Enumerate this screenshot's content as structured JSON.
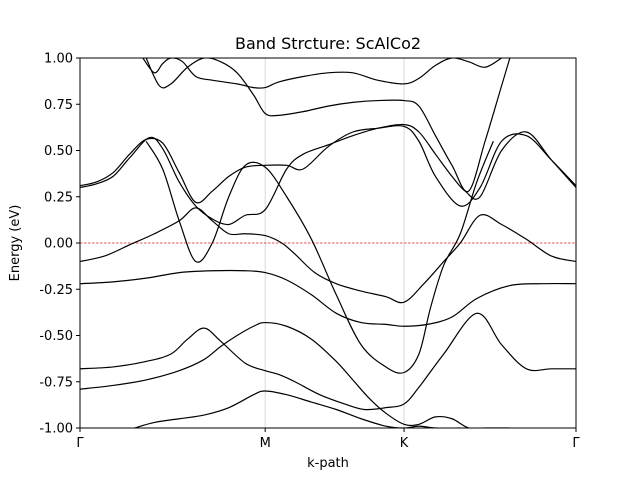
{
  "chart_data": {
    "type": "line",
    "title": "Band Strcture: ScAlCo2",
    "xlabel": "k-path",
    "ylabel": "Energy (eV)",
    "xlim": [
      0,
      3.0
    ],
    "ylim": [
      -1.0,
      1.0
    ],
    "high_symmetry_points": [
      {
        "label": "Γ",
        "x": 0.0
      },
      {
        "label": "M",
        "x": 1.12
      },
      {
        "label": "K",
        "x": 1.96
      },
      {
        "label": "Γ",
        "x": 3.0
      }
    ],
    "yticks": [
      "-1.00",
      "-0.75",
      "-0.50",
      "-0.25",
      "0.00",
      "0.25",
      "0.50",
      "0.75",
      "1.00"
    ],
    "fermi_level": 0.0,
    "grid": "vertical lines at high-symmetry points",
    "bands": [
      {
        "x": [
          0.33,
          0.45,
          0.6,
          0.75,
          0.9,
          1.05,
          1.12,
          1.25,
          1.4,
          1.55,
          1.7,
          1.85,
          1.96,
          2.05,
          2.15,
          2.3
        ],
        "y": [
          -1.0,
          -0.97,
          -0.95,
          -0.93,
          -0.89,
          -0.82,
          -0.8,
          -0.82,
          -0.86,
          -0.9,
          -0.95,
          -0.99,
          -1.0,
          -0.99,
          -1.0,
          -1.0
        ]
      },
      {
        "x": [
          0.0,
          0.2,
          0.4,
          0.6,
          0.75,
          0.85,
          0.95,
          1.05,
          1.12,
          1.25,
          1.4,
          1.55,
          1.65,
          1.75,
          1.85,
          1.96,
          2.05,
          2.15,
          2.25,
          2.35,
          2.45,
          2.6
        ],
        "y": [
          -0.79,
          -0.77,
          -0.74,
          -0.69,
          -0.63,
          -0.56,
          -0.5,
          -0.45,
          -0.43,
          -0.45,
          -0.52,
          -0.64,
          -0.74,
          -0.84,
          -0.92,
          -0.98,
          -0.98,
          -0.94,
          -0.95,
          -1.0,
          -1.0,
          -1.0
        ]
      },
      {
        "x": [
          0.0,
          0.2,
          0.4,
          0.55,
          0.65,
          0.75,
          0.85,
          1.0,
          1.12,
          1.2,
          1.3,
          1.45,
          1.6,
          1.72,
          1.85,
          1.96,
          2.05,
          2.2,
          2.4,
          2.55,
          2.7,
          2.85,
          3.0
        ],
        "y": [
          -0.68,
          -0.67,
          -0.64,
          -0.6,
          -0.52,
          -0.46,
          -0.53,
          -0.65,
          -0.69,
          -0.71,
          -0.75,
          -0.82,
          -0.87,
          -0.9,
          -0.89,
          -0.87,
          -0.78,
          -0.6,
          -0.38,
          -0.55,
          -0.68,
          -0.68,
          -0.68
        ]
      },
      {
        "x": [
          0.0,
          0.2,
          0.4,
          0.6,
          0.8,
          1.0,
          1.12,
          1.25,
          1.4,
          1.55,
          1.7,
          1.85,
          1.96,
          2.1,
          2.25,
          2.4,
          2.6,
          2.8,
          3.0
        ],
        "y": [
          -0.22,
          -0.21,
          -0.19,
          -0.16,
          -0.15,
          -0.15,
          -0.16,
          -0.2,
          -0.28,
          -0.38,
          -0.43,
          -0.44,
          -0.45,
          -0.44,
          -0.4,
          -0.3,
          -0.23,
          -0.22,
          -0.22
        ]
      },
      {
        "x": [
          0.0,
          0.1,
          0.2,
          0.3,
          0.4,
          0.5,
          0.6,
          0.7,
          0.8,
          0.9,
          1.0,
          1.12,
          1.25,
          1.35,
          1.5,
          1.65,
          1.8,
          1.96,
          2.05,
          2.15,
          2.3,
          2.42,
          2.55,
          2.7,
          2.85,
          3.0
        ],
        "y": [
          0.31,
          0.33,
          0.38,
          0.48,
          0.56,
          0.54,
          0.38,
          0.22,
          0.28,
          0.36,
          0.41,
          0.42,
          0.42,
          0.4,
          0.52,
          0.6,
          0.62,
          0.63,
          0.55,
          0.36,
          0.2,
          0.3,
          0.55,
          0.58,
          0.45,
          0.31
        ]
      },
      {
        "x": [
          0.0,
          0.1,
          0.2,
          0.3,
          0.42,
          0.5,
          0.6,
          0.7,
          0.8,
          0.9,
          1.0,
          1.12,
          1.25,
          1.35,
          1.5,
          1.65,
          1.8,
          1.96,
          2.05,
          2.15,
          2.25,
          2.33,
          2.42,
          2.55,
          2.7,
          2.85,
          3.0
        ],
        "y": [
          0.3,
          0.32,
          0.36,
          0.46,
          0.57,
          0.51,
          0.33,
          0.2,
          0.13,
          0.1,
          0.15,
          0.18,
          0.4,
          0.48,
          0.53,
          0.58,
          0.62,
          0.64,
          0.6,
          0.48,
          0.36,
          0.28,
          0.25,
          0.5,
          0.6,
          0.45,
          0.3
        ]
      },
      {
        "x": [
          0.0,
          0.15,
          0.3,
          0.45,
          0.6,
          0.7,
          0.8,
          0.9,
          1.0,
          1.12,
          1.22,
          1.3,
          1.42,
          1.55,
          1.7,
          1.85,
          1.96,
          2.08,
          2.2,
          2.3,
          2.42,
          2.55,
          2.7,
          2.85,
          3.0
        ],
        "y": [
          -0.1,
          -0.07,
          -0.01,
          0.05,
          0.12,
          0.19,
          0.12,
          0.05,
          0.05,
          0.04,
          0.0,
          -0.06,
          -0.16,
          -0.22,
          -0.26,
          -0.29,
          -0.32,
          -0.22,
          -0.1,
          0.0,
          0.15,
          0.1,
          0.02,
          -0.07,
          -0.1
        ]
      },
      {
        "x": [
          0.4,
          0.5,
          0.6,
          0.7,
          0.8,
          0.9,
          1.0,
          1.12,
          1.25,
          1.4,
          1.55,
          1.7,
          1.85,
          1.96,
          2.05,
          2.12,
          2.2,
          2.3,
          2.4,
          2.5
        ],
        "y": [
          0.55,
          0.4,
          0.12,
          -0.1,
          0.0,
          0.25,
          0.42,
          0.41,
          0.25,
          0.02,
          -0.28,
          -0.55,
          -0.67,
          -0.7,
          -0.6,
          -0.35,
          -0.12,
          0.05,
          0.33,
          0.55
        ]
      },
      {
        "x": [
          0.38,
          0.45,
          0.5,
          0.55,
          0.62,
          0.7,
          0.8,
          0.95,
          1.05,
          1.12,
          1.2,
          1.35,
          1.5,
          1.65,
          1.8,
          1.96,
          2.05,
          2.15,
          2.25,
          2.35,
          2.45,
          2.55
        ],
        "y": [
          1.0,
          0.92,
          0.97,
          1.0,
          0.98,
          0.9,
          0.88,
          0.86,
          0.84,
          0.84,
          0.87,
          0.9,
          0.92,
          0.92,
          0.88,
          0.86,
          0.89,
          0.96,
          1.0,
          0.98,
          0.95,
          1.0
        ]
      },
      {
        "x": [
          0.4,
          0.48,
          0.55,
          0.65,
          0.75,
          0.85,
          0.95,
          1.05,
          1.12,
          1.2,
          1.35,
          1.5,
          1.65,
          1.8,
          1.96,
          2.05,
          2.15,
          2.25,
          2.35,
          2.45,
          2.55,
          2.6
        ],
        "y": [
          1.0,
          0.85,
          0.86,
          0.95,
          1.0,
          0.98,
          0.92,
          0.8,
          0.7,
          0.69,
          0.71,
          0.74,
          0.76,
          0.77,
          0.77,
          0.74,
          0.58,
          0.42,
          0.28,
          0.55,
          0.85,
          1.0
        ]
      }
    ]
  }
}
